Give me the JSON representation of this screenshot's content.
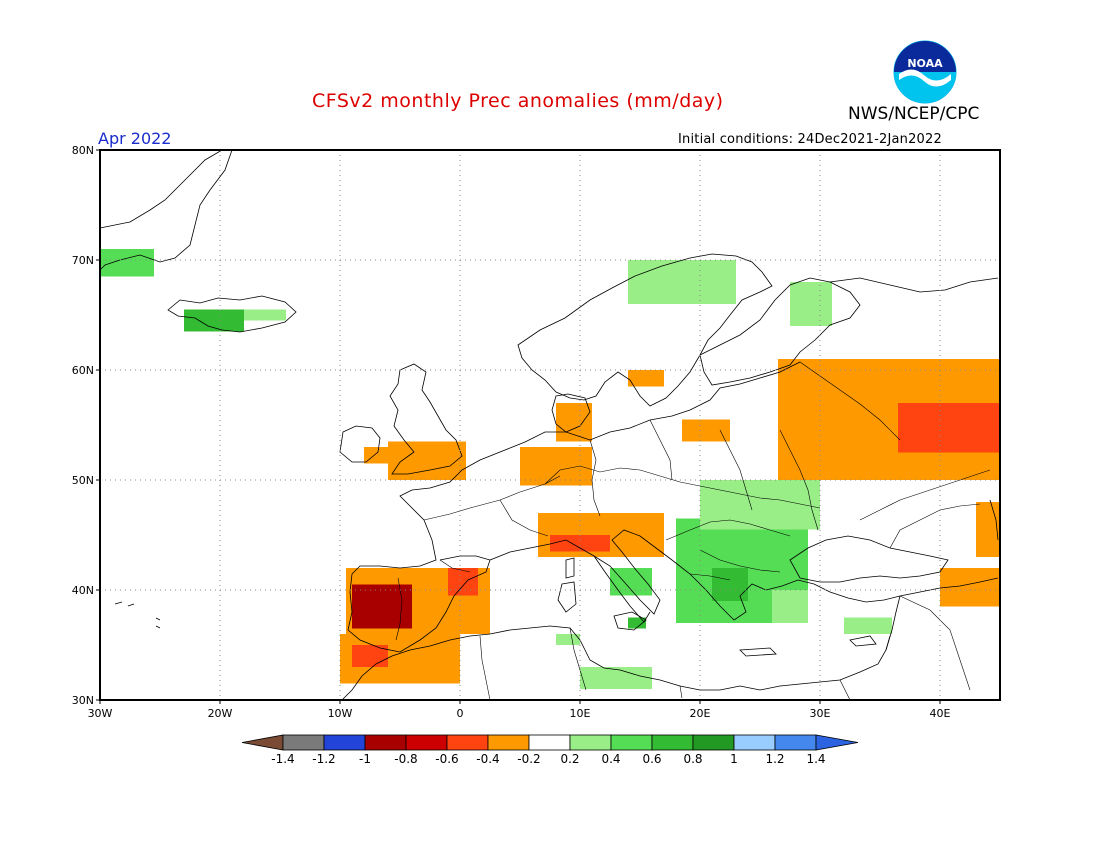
{
  "header": {
    "title": "CFSv2 monthly Prec anomalies (mm/day)",
    "agency": "NWS/NCEP/CPC",
    "month": "Apr 2022",
    "initial_conditions": "Initial conditions: 24Dec2021-2Jan2022",
    "logo_text": "NOAA"
  },
  "map": {
    "lon_range": [
      -30,
      45
    ],
    "lat_range": [
      30,
      80
    ],
    "lon_ticks": [
      {
        "v": -30,
        "label": "30W"
      },
      {
        "v": -20,
        "label": "20W"
      },
      {
        "v": -10,
        "label": "10W"
      },
      {
        "v": 0,
        "label": "0"
      },
      {
        "v": 10,
        "label": "10E"
      },
      {
        "v": 20,
        "label": "20E"
      },
      {
        "v": 30,
        "label": "30E"
      },
      {
        "v": 40,
        "label": "40E"
      }
    ],
    "lat_ticks": [
      {
        "v": 30,
        "label": "30N"
      },
      {
        "v": 40,
        "label": "40N"
      },
      {
        "v": 50,
        "label": "50N"
      },
      {
        "v": 60,
        "label": "60N"
      },
      {
        "v": 70,
        "label": "70N"
      },
      {
        "v": 80,
        "label": "80N"
      }
    ],
    "anomaly_regions": [
      {
        "name": "Greenland E coast",
        "value": 0.4,
        "lon": [
          -30,
          -25.5
        ],
        "lat": [
          68.5,
          71
        ]
      },
      {
        "name": "Iceland W",
        "value": 0.6,
        "lon": [
          -23,
          -18
        ],
        "lat": [
          63.5,
          65.5
        ]
      },
      {
        "name": "Iceland E",
        "value": 0.3,
        "lon": [
          -18,
          -14.5
        ],
        "lat": [
          64.5,
          65.5
        ]
      },
      {
        "name": "Scandinavia N coast",
        "value": 0.3,
        "lon": [
          14,
          23
        ],
        "lat": [
          66,
          70
        ]
      },
      {
        "name": "Kola",
        "value": 0.3,
        "lon": [
          27.5,
          31
        ],
        "lat": [
          64,
          68
        ]
      },
      {
        "name": "Ireland",
        "value": -0.3,
        "lon": [
          -8,
          -6
        ],
        "lat": [
          51.5,
          53
        ]
      },
      {
        "name": "England",
        "value": -0.3,
        "lon": [
          -6,
          0.5
        ],
        "lat": [
          50,
          53.5
        ]
      },
      {
        "name": "Benelux Germany",
        "value": -0.3,
        "lon": [
          5,
          11
        ],
        "lat": [
          49.5,
          53
        ]
      },
      {
        "name": "Denmark",
        "value": -0.3,
        "lon": [
          8,
          11
        ],
        "lat": [
          53.5,
          57
        ]
      },
      {
        "name": "Norway S",
        "value": -0.3,
        "lon": [
          14,
          17
        ],
        "lat": [
          58.5,
          60
        ]
      },
      {
        "name": "Poland N",
        "value": -0.3,
        "lon": [
          18.5,
          22.5
        ],
        "lat": [
          53.5,
          55.5
        ]
      },
      {
        "name": "Russia W",
        "value": -0.3,
        "lon": [
          26.5,
          45
        ],
        "lat": [
          50,
          61
        ]
      },
      {
        "name": "Russia core",
        "value": -0.6,
        "lon": [
          36.5,
          45
        ],
        "lat": [
          52.5,
          57
        ]
      },
      {
        "name": "Alps",
        "value": -0.3,
        "lon": [
          6.5,
          17
        ],
        "lat": [
          43,
          47
        ]
      },
      {
        "name": "NW Italy",
        "value": -0.6,
        "lon": [
          7.5,
          12.5
        ],
        "lat": [
          43.5,
          45
        ]
      },
      {
        "name": "Iberia",
        "value": -0.4,
        "lon": [
          -9.5,
          2.5
        ],
        "lat": [
          36,
          42
        ]
      },
      {
        "name": "SW Iberia",
        "value": -0.9,
        "lon": [
          -9,
          -4
        ],
        "lat": [
          36.5,
          40.5
        ]
      },
      {
        "name": "NE Spain",
        "value": -0.6,
        "lon": [
          -1,
          1.5
        ],
        "lat": [
          39.5,
          42
        ]
      },
      {
        "name": "Morocco",
        "value": -0.3,
        "lon": [
          -10,
          0
        ],
        "lat": [
          31.5,
          36
        ]
      },
      {
        "name": "Morocco W",
        "value": -0.6,
        "lon": [
          -9,
          -6
        ],
        "lat": [
          33,
          35
        ]
      },
      {
        "name": "Balkans",
        "value": 0.5,
        "lon": [
          18,
          29
        ],
        "lat": [
          37,
          46.5
        ]
      },
      {
        "name": "Romania",
        "value": 0.3,
        "lon": [
          20,
          30
        ],
        "lat": [
          45.5,
          50
        ]
      },
      {
        "name": "Greece core",
        "value": 0.7,
        "lon": [
          21,
          24
        ],
        "lat": [
          39,
          42
        ]
      },
      {
        "name": "Italy S",
        "value": 0.4,
        "lon": [
          12.5,
          16
        ],
        "lat": [
          39.5,
          42
        ]
      },
      {
        "name": "Sicily",
        "value": 0.7,
        "lon": [
          14,
          15.5
        ],
        "lat": [
          36.5,
          37.5
        ]
      },
      {
        "name": "Tunisia",
        "value": 0.3,
        "lon": [
          8,
          10
        ],
        "lat": [
          35,
          36
        ]
      },
      {
        "name": "Libya coast",
        "value": 0.3,
        "lon": [
          10,
          16
        ],
        "lat": [
          31,
          33
        ]
      },
      {
        "name": "Turkey W",
        "value": 0.3,
        "lon": [
          26,
          29
        ],
        "lat": [
          37,
          40
        ]
      },
      {
        "name": "Turkey S",
        "value": 0.3,
        "lon": [
          32,
          36
        ],
        "lat": [
          36,
          37.5
        ]
      },
      {
        "name": "Caucasus",
        "value": -0.3,
        "lon": [
          40,
          45
        ],
        "lat": [
          38.5,
          42
        ]
      },
      {
        "name": "Caspian",
        "value": -0.3,
        "lon": [
          43,
          45
        ],
        "lat": [
          43,
          48
        ]
      }
    ]
  },
  "colorbar": {
    "labels": [
      "-1.4",
      "-1.2",
      "-1",
      "-0.8",
      "-0.6",
      "-0.4",
      "-0.2",
      "0.2",
      "0.4",
      "0.6",
      "0.8",
      "1",
      "1.2",
      "1.4"
    ],
    "low_arrow_color": "#7a4a35",
    "high_arrow_color": "#2c63e0",
    "colors": [
      "#7a7a7a",
      "#2244d8",
      "#a80000",
      "#cc0000",
      "#ff4411",
      "#ff9900",
      "#ffffff",
      "#99ee88",
      "#55dd55",
      "#33bb33",
      "#229922",
      "#99ccff",
      "#4488ee"
    ]
  }
}
